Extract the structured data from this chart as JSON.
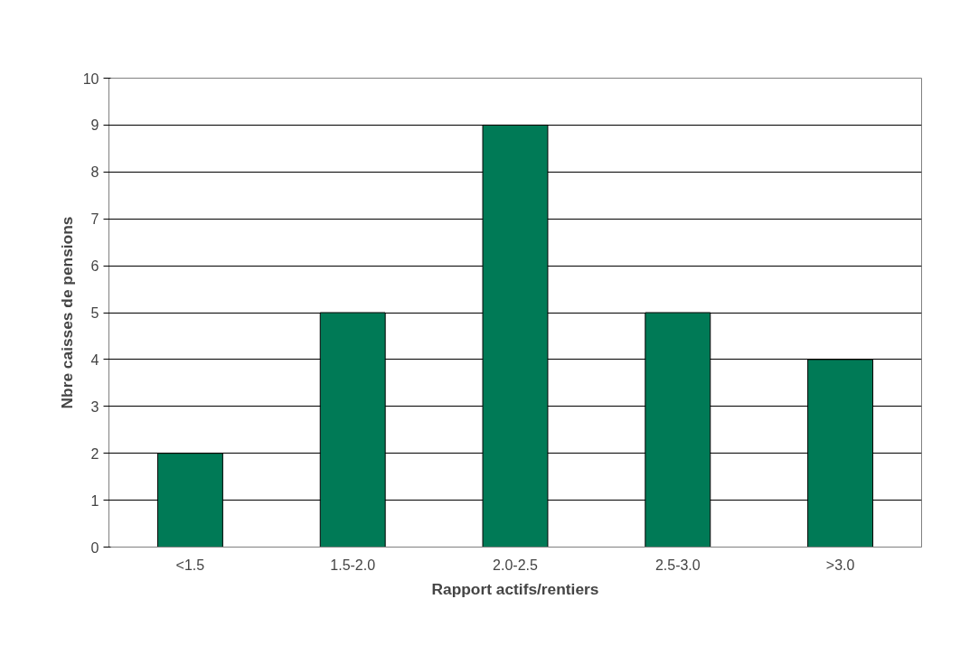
{
  "chart_data": {
    "type": "bar",
    "xlabel": "Rapport actifs/rentiers",
    "ylabel": "Nbre caisses de pensions",
    "categories": [
      "<1.5",
      "1.5-2.0",
      "2.0-2.5",
      "2.5-3.0",
      ">3.0"
    ],
    "values": [
      2,
      5,
      9,
      5,
      4
    ],
    "color": "#007a56",
    "ylim": [
      0,
      10
    ],
    "yticks": [
      0,
      1,
      2,
      3,
      4,
      5,
      6,
      7,
      8,
      9,
      10
    ],
    "grid": "y"
  }
}
